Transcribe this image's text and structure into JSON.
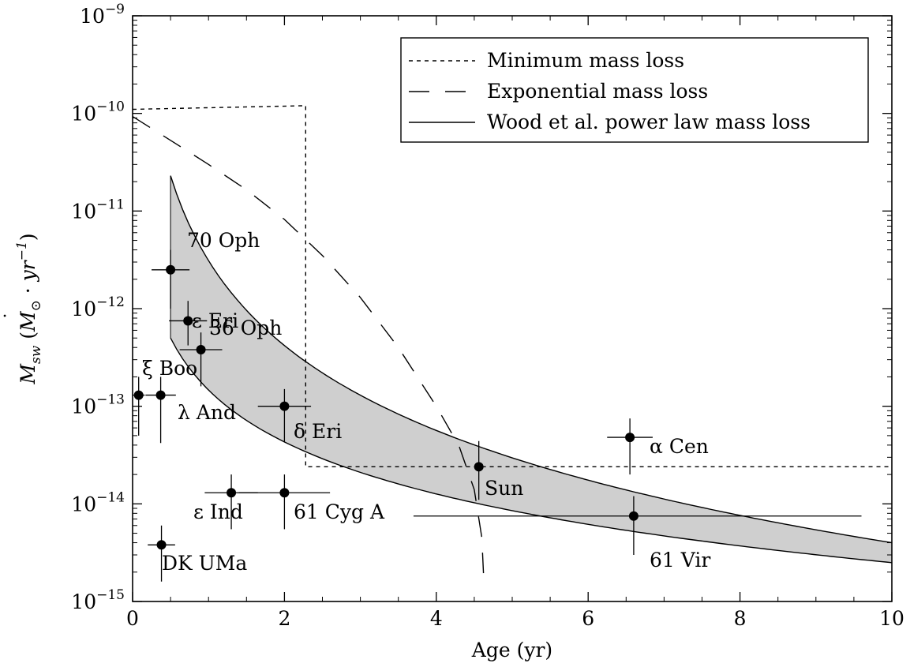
{
  "chart_data": {
    "type": "scatter",
    "xlabel": "Age (yr)",
    "ylabel": "Ṁsw (M⊙ · yr⁻¹)",
    "ylabel_parts": {
      "main": "M",
      "sub": "sw",
      "paren_open": " (",
      "msun": "M",
      "sun_sub": "⊙",
      "dot": " · ",
      "yr": "yr",
      "exp": "−1",
      "paren_close": ")"
    },
    "xlim": [
      0,
      10
    ],
    "ylim": [
      1e-15,
      1e-09
    ],
    "yscale": "log",
    "x_ticks": [
      0,
      2,
      4,
      6,
      8,
      10
    ],
    "x_tick_labels": [
      "0",
      "2",
      "4",
      "6",
      "8",
      "10"
    ],
    "y_tick_exponents": [
      -15,
      -14,
      -13,
      -12,
      -11,
      -10,
      -9
    ],
    "y_tick_labels": [
      {
        "base": "10",
        "exp": "−15"
      },
      {
        "base": "10",
        "exp": "−14"
      },
      {
        "base": "10",
        "exp": "−13"
      },
      {
        "base": "10",
        "exp": "−12"
      },
      {
        "base": "10",
        "exp": "−11"
      },
      {
        "base": "10",
        "exp": "−10"
      },
      {
        "base": "10",
        "exp": "−9"
      }
    ],
    "legend_position": "top-right",
    "legend": [
      {
        "label": "Minimum mass loss",
        "style": "dotted"
      },
      {
        "label": "Exponential mass loss",
        "style": "dashed"
      },
      {
        "label": "Wood et al. power law mass loss",
        "style": "solid"
      }
    ],
    "points": [
      {
        "name": "70 Oph",
        "age": 0.5,
        "mdot": 2.5e-12,
        "age_err": [
          0.25,
          0.25
        ],
        "mdot_range": [
          1e-12,
          4e-12
        ]
      },
      {
        "name": "ε Eri",
        "age": 0.73,
        "mdot": 7.5e-13,
        "age_err": [
          0.25,
          0.25
        ],
        "mdot_range": [
          4.2e-13,
          1.2e-12
        ]
      },
      {
        "name": "36 Oph",
        "age": 0.9,
        "mdot": 3.8e-13,
        "age_err": [
          0.28,
          0.28
        ],
        "mdot_range": [
          1.6e-13,
          5.7e-13
        ]
      },
      {
        "name": "ξ Boo",
        "age": 0.08,
        "mdot": 1.3e-13,
        "age_err": [
          0.08,
          0.08
        ],
        "mdot_range": [
          5e-14,
          2e-13
        ]
      },
      {
        "name": "λ And",
        "age": 0.37,
        "mdot": 1.3e-13,
        "age_err": [
          0.2,
          0.2
        ],
        "mdot_range": [
          4.2e-14,
          2e-13
        ]
      },
      {
        "name": "δ Eri",
        "age": 2.0,
        "mdot": 1e-13,
        "age_err": [
          0.35,
          0.35
        ],
        "mdot_range": [
          4.3e-14,
          1.5e-13
        ]
      },
      {
        "name": "ε Ind",
        "age": 1.3,
        "mdot": 1.3e-14,
        "age_err": [
          0.35,
          0.35
        ],
        "mdot_range": [
          5.5e-15,
          2e-14
        ]
      },
      {
        "name": "61 Cyg A",
        "age": 2.0,
        "mdot": 1.3e-14,
        "age_err": [
          0.6,
          0.6
        ],
        "mdot_range": [
          5.5e-15,
          2e-14
        ]
      },
      {
        "name": "DK UMa",
        "age": 0.38,
        "mdot": 3.8e-15,
        "age_err": [
          0.18,
          0.18
        ],
        "mdot_range": [
          1.6e-15,
          6e-15
        ]
      },
      {
        "name": "Sun",
        "age": 4.56,
        "mdot": 2.4e-14,
        "age_err": [
          0.0,
          0.0
        ],
        "mdot_range": [
          1.1e-14,
          4.4e-14
        ]
      },
      {
        "name": "α Cen",
        "age": 6.55,
        "mdot": 4.8e-14,
        "age_err": [
          0.3,
          0.3
        ],
        "mdot_range": [
          2e-14,
          7.5e-14
        ]
      },
      {
        "name": "61 Vir",
        "age": 6.6,
        "mdot": 7.5e-15,
        "age_err": [
          2.9,
          3.0
        ],
        "mdot_range": [
          3e-15,
          1.2e-14
        ]
      }
    ],
    "minimum_mass_loss": {
      "x": [
        0,
        2.28,
        2.28,
        10
      ],
      "y": [
        1.1e-10,
        1.2e-10,
        2.4e-14,
        2.4e-14
      ]
    },
    "exponential_mass_loss": {
      "x": [
        0,
        0.5,
        1,
        1.5,
        2,
        2.5,
        3,
        3.5,
        4,
        4.3,
        4.5,
        4.6,
        4.63
      ],
      "y": [
        9.3e-11,
        5.3e-11,
        3e-11,
        1.65e-11,
        8.2e-12,
        3.5e-12,
        1.3e-12,
        4e-13,
        1e-13,
        3.9e-14,
        1.4e-14,
        4.5e-15,
        1.4e-15
      ]
    },
    "power_law_band": {
      "x_start": 0.5,
      "x_end": 10,
      "upper_at_x_start": 2.3e-11,
      "upper_at_x_end": 4e-15,
      "lower_at_x_start": 5e-13,
      "lower_at_x_end": 2.5e-15
    },
    "colors": {
      "band_fill": "#cfcfcf",
      "line": "#000000"
    }
  }
}
